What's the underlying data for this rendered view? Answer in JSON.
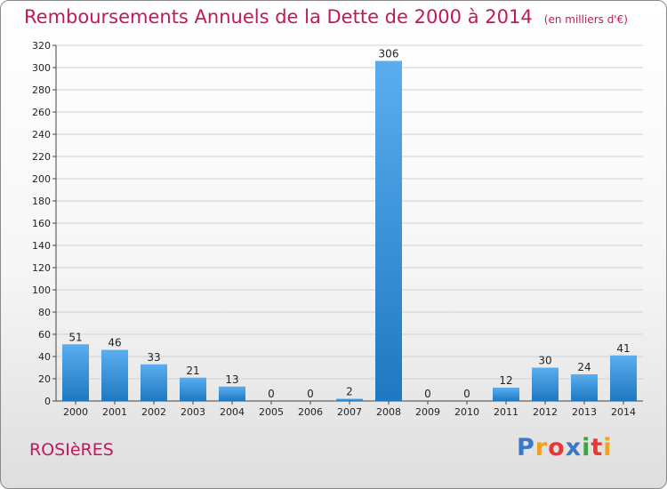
{
  "header": {
    "title": "Remboursements Annuels de la Dette de 2000 à 2014",
    "unit": "(en milliers d'€)"
  },
  "footer": {
    "place": "ROSIèRES",
    "logo_letters": [
      "P",
      "r",
      "o",
      "x",
      "i",
      "t",
      "i"
    ],
    "logo_colors": [
      "#3a78c9",
      "#f0a11e",
      "#e53935",
      "#3a78c9",
      "#43a047",
      "#e53935",
      "#f0a11e"
    ],
    "place_color": "#c2185b"
  },
  "colors": {
    "bar_light": "#5aaef0",
    "bar_dark": "#1f78c0",
    "grid": "#d0d0d0",
    "title": "#c2185b"
  },
  "chart_data": {
    "type": "bar",
    "categories": [
      "2000",
      "2001",
      "2002",
      "2003",
      "2004",
      "2005",
      "2006",
      "2007",
      "2008",
      "2009",
      "2010",
      "2011",
      "2012",
      "2013",
      "2014"
    ],
    "values": [
      51,
      46,
      33,
      21,
      13,
      0,
      0,
      2,
      306,
      0,
      0,
      12,
      30,
      24,
      41
    ],
    "data_labels": [
      "51",
      "46",
      "33",
      "21",
      "13",
      "0",
      "0",
      "2",
      "306",
      "0",
      "0",
      "12",
      "30",
      "24",
      "41"
    ],
    "title": "Remboursements Annuels de la Dette de 2000 à 2014",
    "xlabel": "",
    "ylabel": "",
    "ylim": [
      0,
      320
    ],
    "yticks": [
      0,
      20,
      40,
      60,
      80,
      100,
      120,
      140,
      160,
      180,
      200,
      220,
      240,
      260,
      280,
      300,
      320
    ],
    "grid": true,
    "legend": "none"
  }
}
